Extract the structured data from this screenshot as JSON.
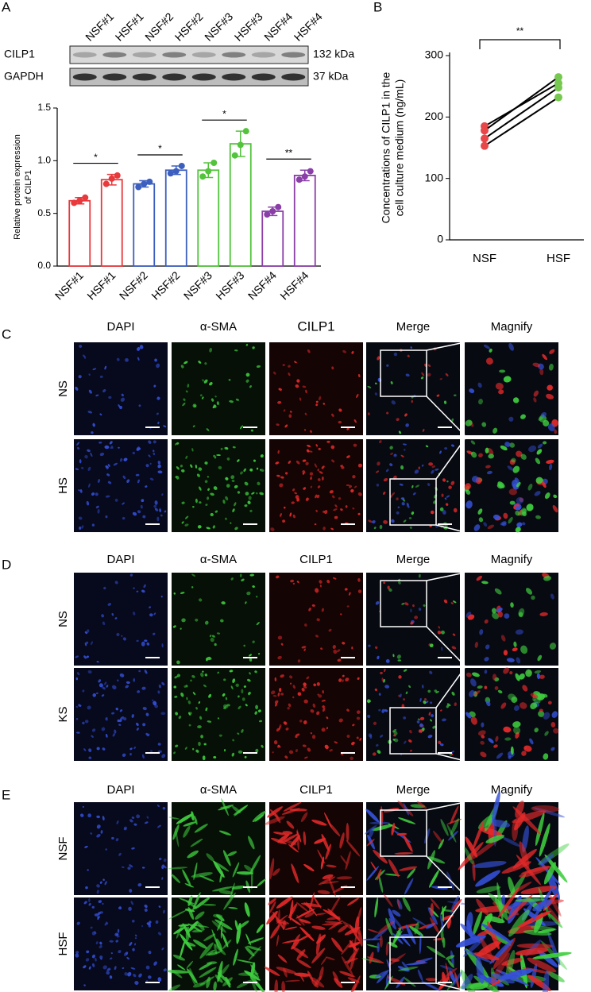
{
  "panel_labels": [
    "A",
    "B",
    "C",
    "D",
    "E"
  ],
  "western_blot": {
    "rows": [
      {
        "protein": "CILP1",
        "size": "132 kDa"
      },
      {
        "protein": "GAPDH",
        "size": "37 kDa"
      }
    ]
  },
  "chart_data": [
    {
      "type": "bar",
      "categories": [
        "NSF#1",
        "HSF#1",
        "NSF#2",
        "HSF#2",
        "NSF#3",
        "HSF#3",
        "NSF#4",
        "HSF#4"
      ],
      "values": [
        0.62,
        0.82,
        0.78,
        0.91,
        0.91,
        1.16,
        0.52,
        0.86
      ],
      "errors": [
        0.03,
        0.05,
        0.03,
        0.04,
        0.07,
        0.12,
        0.04,
        0.05
      ],
      "points": [
        [
          0.6,
          0.62,
          0.65
        ],
        [
          0.78,
          0.83,
          0.86
        ],
        [
          0.75,
          0.78,
          0.8
        ],
        [
          0.88,
          0.9,
          0.95
        ],
        [
          0.85,
          0.9,
          0.98
        ],
        [
          1.05,
          1.15,
          1.28
        ],
        [
          0.49,
          0.52,
          0.56
        ],
        [
          0.82,
          0.85,
          0.9
        ]
      ],
      "colors": [
        "#e8393c",
        "#e8393c",
        "#3c5fbf",
        "#3c5fbf",
        "#52c33b",
        "#52c33b",
        "#8a3fa8",
        "#8a3fa8"
      ],
      "ylim": [
        0,
        1.5
      ],
      "yticks": [
        {
          "value": 0,
          "label": "0.0"
        },
        0.5,
        {
          "value": 1,
          "label": "1.0"
        },
        {
          "value": 1.5,
          "label": "1.5"
        }
      ],
      "ylabel": [
        "Relative protein expression",
        "of CILP1"
      ],
      "significance": [
        {
          "groups": [
            0,
            1
          ],
          "label": "*"
        },
        {
          "groups": [
            2,
            3
          ],
          "label": "*"
        },
        {
          "groups": [
            4,
            5
          ],
          "label": "*"
        },
        {
          "groups": [
            6,
            7
          ],
          "label": "**"
        }
      ]
    },
    {
      "type": "line",
      "categories": [
        "NSF",
        "HSF"
      ],
      "series": [
        {
          "values": [
            185,
            255
          ]
        },
        {
          "values": [
            178,
            265
          ]
        },
        {
          "values": [
            165,
            248
          ]
        },
        {
          "values": [
            153,
            232
          ]
        }
      ],
      "line_color": "#000000",
      "point_colors": [
        "#e8474a",
        "#77c850"
      ],
      "ylim": [
        0,
        300
      ],
      "yticks": [
        0,
        100,
        200,
        300
      ],
      "ylabel": [
        "Concentrations of CILP1 in the",
        "cell culture medium (ng/mL)"
      ],
      "significance": {
        "groups": [
          0,
          1
        ],
        "label": "**"
      }
    }
  ],
  "image_panels": [
    {
      "columns": [
        "DAPI",
        "α-SMA",
        "CILP1",
        "Merge",
        "Magnify"
      ],
      "column_colors": [
        "#3a3ac0",
        "#2eaa3b",
        "#e02020",
        "#000000",
        "#000000"
      ],
      "rows": [
        "NS",
        "HS"
      ]
    },
    {
      "columns": [
        "DAPI",
        "α-SMA",
        "CILP1",
        "Merge",
        "Magnify"
      ],
      "column_colors": [
        "#3a3ac0",
        "#2eaa3b",
        "#e02020",
        "#000000",
        "#000000"
      ],
      "rows": [
        "NS",
        "KS"
      ]
    },
    {
      "columns": [
        "DAPI",
        "α-SMA",
        "CILP1",
        "Merge",
        "Magnify"
      ],
      "column_colors": [
        "#3a3ac0",
        "#2eaa3b",
        "#e02020",
        "#000000",
        "#000000"
      ],
      "rows": [
        "NSF",
        "HSF"
      ]
    }
  ]
}
